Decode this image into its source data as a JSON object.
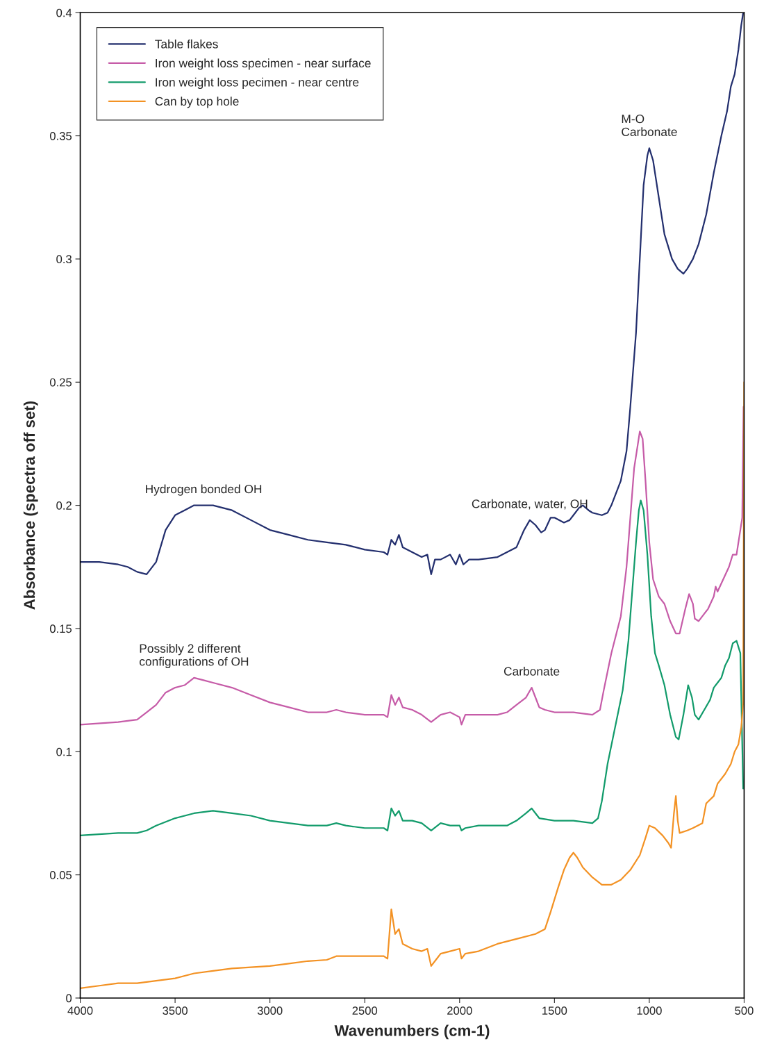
{
  "chart_data": {
    "type": "line",
    "xlabel": "Wavenumbers (cm-1)",
    "ylabel": "Absorbance (spectra off set)",
    "xlim": [
      4000,
      500
    ],
    "xticks": [
      4000,
      3500,
      3000,
      2500,
      2000,
      1500,
      1000,
      500
    ],
    "ylim": [
      0,
      0.4
    ],
    "yticks": [
      0,
      0.05,
      0.1,
      0.15,
      0.2,
      0.25,
      0.3,
      0.35,
      0.4
    ],
    "grid": false,
    "legend": "top left",
    "series": [
      {
        "name": "Table flakes",
        "color": "#232f6e",
        "x": [
          4000,
          3900,
          3800,
          3750,
          3700,
          3650,
          3600,
          3550,
          3500,
          3450,
          3400,
          3350,
          3300,
          3200,
          3100,
          3000,
          2900,
          2800,
          2700,
          2600,
          2500,
          2400,
          2380,
          2360,
          2340,
          2320,
          2300,
          2250,
          2200,
          2170,
          2150,
          2130,
          2100,
          2050,
          2020,
          2000,
          1980,
          1950,
          1900,
          1800,
          1750,
          1700,
          1660,
          1630,
          1600,
          1570,
          1550,
          1520,
          1500,
          1450,
          1420,
          1400,
          1370,
          1350,
          1320,
          1300,
          1250,
          1220,
          1200,
          1150,
          1120,
          1100,
          1070,
          1050,
          1030,
          1010,
          1000,
          980,
          950,
          920,
          880,
          850,
          820,
          800,
          770,
          740,
          700,
          660,
          620,
          590,
          570,
          550,
          530,
          515,
          505
        ],
        "values": [
          0.177,
          0.177,
          0.176,
          0.175,
          0.173,
          0.172,
          0.177,
          0.19,
          0.196,
          0.198,
          0.2,
          0.2,
          0.2,
          0.198,
          0.194,
          0.19,
          0.188,
          0.186,
          0.185,
          0.184,
          0.182,
          0.181,
          0.18,
          0.186,
          0.184,
          0.188,
          0.183,
          0.181,
          0.179,
          0.18,
          0.172,
          0.178,
          0.178,
          0.18,
          0.176,
          0.18,
          0.176,
          0.178,
          0.178,
          0.179,
          0.181,
          0.183,
          0.19,
          0.194,
          0.192,
          0.189,
          0.19,
          0.195,
          0.195,
          0.193,
          0.194,
          0.196,
          0.199,
          0.2,
          0.198,
          0.197,
          0.196,
          0.197,
          0.2,
          0.21,
          0.222,
          0.24,
          0.27,
          0.3,
          0.33,
          0.342,
          0.345,
          0.34,
          0.325,
          0.31,
          0.3,
          0.296,
          0.294,
          0.296,
          0.3,
          0.306,
          0.318,
          0.335,
          0.35,
          0.36,
          0.37,
          0.375,
          0.385,
          0.395,
          0.4
        ]
      },
      {
        "name": "Iron weight loss specimen - near surface",
        "color": "#c65ca8",
        "x": [
          4000,
          3800,
          3700,
          3650,
          3600,
          3550,
          3500,
          3450,
          3400,
          3350,
          3300,
          3200,
          3100,
          3000,
          2900,
          2800,
          2700,
          2650,
          2600,
          2500,
          2400,
          2380,
          2360,
          2340,
          2320,
          2300,
          2250,
          2200,
          2150,
          2100,
          2050,
          2000,
          1990,
          1970,
          1900,
          1800,
          1750,
          1700,
          1650,
          1620,
          1600,
          1580,
          1550,
          1500,
          1400,
          1300,
          1260,
          1240,
          1200,
          1150,
          1120,
          1100,
          1080,
          1060,
          1050,
          1035,
          1020,
          1000,
          980,
          950,
          920,
          890,
          860,
          840,
          810,
          790,
          770,
          760,
          740,
          710,
          690,
          660,
          650,
          640,
          610,
          580,
          560,
          540,
          520,
          510,
          503
        ],
        "values": [
          0.111,
          0.112,
          0.113,
          0.116,
          0.119,
          0.124,
          0.126,
          0.127,
          0.13,
          0.129,
          0.128,
          0.126,
          0.123,
          0.12,
          0.118,
          0.116,
          0.116,
          0.117,
          0.116,
          0.115,
          0.115,
          0.114,
          0.123,
          0.119,
          0.122,
          0.118,
          0.117,
          0.115,
          0.112,
          0.115,
          0.116,
          0.114,
          0.111,
          0.115,
          0.115,
          0.115,
          0.116,
          0.119,
          0.122,
          0.126,
          0.122,
          0.118,
          0.117,
          0.116,
          0.116,
          0.115,
          0.117,
          0.125,
          0.14,
          0.155,
          0.175,
          0.195,
          0.215,
          0.225,
          0.23,
          0.227,
          0.21,
          0.185,
          0.17,
          0.163,
          0.16,
          0.153,
          0.148,
          0.148,
          0.158,
          0.164,
          0.16,
          0.154,
          0.153,
          0.156,
          0.158,
          0.163,
          0.167,
          0.165,
          0.17,
          0.175,
          0.18,
          0.18,
          0.19,
          0.195,
          0.24
        ]
      },
      {
        "name": "Iron weight loss pecimen - near centre",
        "color": "#129b6b",
        "x": [
          4000,
          3800,
          3700,
          3650,
          3600,
          3500,
          3400,
          3300,
          3200,
          3100,
          3000,
          2900,
          2800,
          2700,
          2650,
          2600,
          2500,
          2400,
          2380,
          2360,
          2340,
          2320,
          2300,
          2250,
          2200,
          2150,
          2100,
          2050,
          2000,
          1990,
          1970,
          1900,
          1800,
          1750,
          1700,
          1650,
          1620,
          1600,
          1580,
          1500,
          1400,
          1300,
          1270,
          1250,
          1220,
          1180,
          1140,
          1110,
          1090,
          1070,
          1055,
          1045,
          1030,
          1010,
          990,
          970,
          950,
          920,
          890,
          860,
          845,
          820,
          795,
          775,
          760,
          740,
          710,
          680,
          660,
          640,
          620,
          600,
          580,
          560,
          540,
          520,
          505
        ],
        "values": [
          0.066,
          0.067,
          0.067,
          0.068,
          0.07,
          0.073,
          0.075,
          0.076,
          0.075,
          0.074,
          0.072,
          0.071,
          0.07,
          0.07,
          0.071,
          0.07,
          0.069,
          0.069,
          0.068,
          0.077,
          0.074,
          0.076,
          0.072,
          0.072,
          0.071,
          0.068,
          0.071,
          0.07,
          0.07,
          0.068,
          0.069,
          0.07,
          0.07,
          0.07,
          0.072,
          0.075,
          0.077,
          0.075,
          0.073,
          0.072,
          0.072,
          0.071,
          0.073,
          0.08,
          0.095,
          0.11,
          0.125,
          0.145,
          0.165,
          0.185,
          0.198,
          0.202,
          0.198,
          0.18,
          0.155,
          0.14,
          0.135,
          0.127,
          0.115,
          0.106,
          0.105,
          0.115,
          0.127,
          0.122,
          0.115,
          0.113,
          0.117,
          0.121,
          0.126,
          0.128,
          0.13,
          0.135,
          0.138,
          0.144,
          0.145,
          0.14,
          0.085
        ]
      },
      {
        "name": "Can by top hole",
        "color": "#f39224",
        "x": [
          4000,
          3900,
          3800,
          3700,
          3600,
          3500,
          3400,
          3300,
          3200,
          3100,
          3000,
          2900,
          2800,
          2700,
          2650,
          2600,
          2500,
          2400,
          2380,
          2360,
          2340,
          2320,
          2300,
          2250,
          2200,
          2170,
          2150,
          2120,
          2100,
          2050,
          2000,
          1990,
          1970,
          1900,
          1800,
          1700,
          1600,
          1550,
          1520,
          1480,
          1450,
          1420,
          1400,
          1380,
          1350,
          1300,
          1250,
          1200,
          1150,
          1100,
          1050,
          1020,
          1000,
          970,
          930,
          900,
          885,
          870,
          860,
          850,
          840,
          800,
          770,
          720,
          700,
          660,
          640,
          600,
          570,
          550,
          530,
          515,
          505,
          500
        ],
        "values": [
          0.004,
          0.005,
          0.006,
          0.006,
          0.007,
          0.008,
          0.01,
          0.011,
          0.012,
          0.0125,
          0.013,
          0.014,
          0.015,
          0.0155,
          0.017,
          0.017,
          0.017,
          0.017,
          0.016,
          0.036,
          0.026,
          0.028,
          0.022,
          0.02,
          0.019,
          0.02,
          0.013,
          0.016,
          0.018,
          0.019,
          0.02,
          0.016,
          0.018,
          0.019,
          0.022,
          0.024,
          0.026,
          0.028,
          0.035,
          0.045,
          0.052,
          0.057,
          0.059,
          0.057,
          0.053,
          0.049,
          0.046,
          0.046,
          0.048,
          0.052,
          0.058,
          0.065,
          0.07,
          0.069,
          0.066,
          0.063,
          0.061,
          0.075,
          0.082,
          0.072,
          0.067,
          0.068,
          0.069,
          0.071,
          0.079,
          0.082,
          0.087,
          0.091,
          0.095,
          0.1,
          0.103,
          0.11,
          0.12,
          0.25
        ]
      }
    ],
    "annotations": [
      {
        "text": "M-O\nCarbonate",
        "x": 1000,
        "y": 0.345
      },
      {
        "text": "Hydrogen bonded OH",
        "x": 3350,
        "y": 0.2
      },
      {
        "text": "Carbonate, water, OH",
        "x": 1630,
        "y": 0.194
      },
      {
        "text": "Possibly 2 different\nconfigurations of OH",
        "x": 3400,
        "y": 0.13
      },
      {
        "text": "Carbonate",
        "x": 1620,
        "y": 0.126
      }
    ]
  }
}
